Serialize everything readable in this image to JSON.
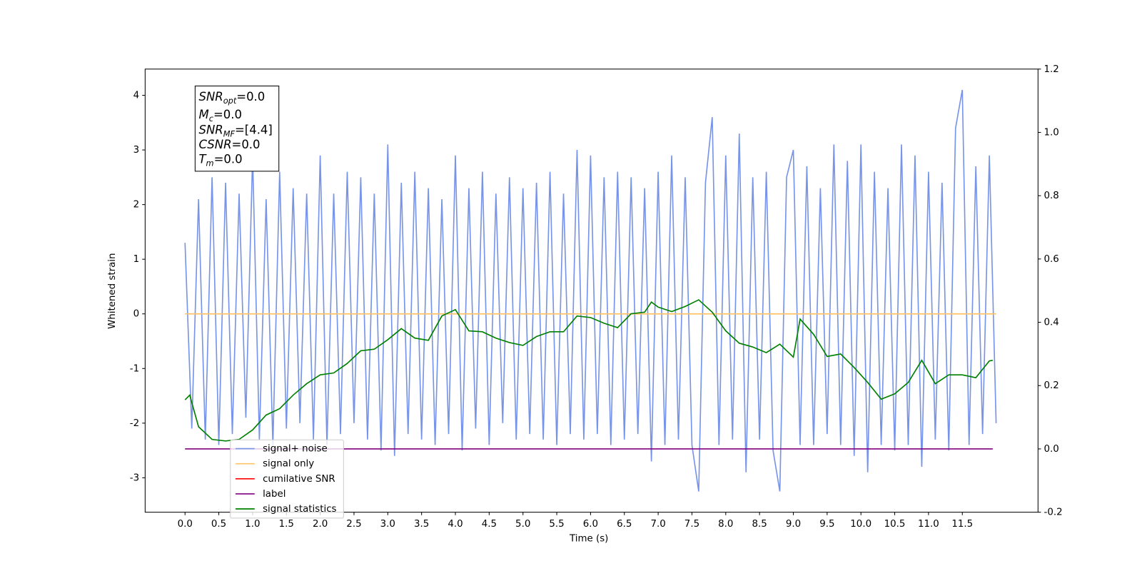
{
  "chart_data": {
    "type": "line",
    "xlabel": "Time (s)",
    "ylabel": "Whitened strain",
    "xlim": [
      -0.59,
      12.62
    ],
    "ylim": [
      -3.63,
      4.48
    ],
    "y2lim": [
      -0.2,
      1.2
    ],
    "xticks": [
      {
        "value": 0,
        "label": "0.0"
      },
      0.5,
      {
        "value": 1,
        "label": "1.0"
      },
      1.5,
      {
        "value": 2,
        "label": "2.0"
      },
      2.5,
      {
        "value": 3,
        "label": "3.0"
      },
      3.5,
      {
        "value": 4,
        "label": "4.0"
      },
      4.5,
      {
        "value": 5,
        "label": "5.0"
      },
      5.5,
      {
        "value": 6,
        "label": "6.0"
      },
      6.5,
      {
        "value": 7,
        "label": "7.0"
      },
      7.5,
      {
        "value": 8,
        "label": "8.0"
      },
      8.5,
      {
        "value": 9,
        "label": "9.0"
      },
      9.5,
      {
        "value": 10,
        "label": "10.0"
      },
      10.5,
      {
        "value": 11,
        "label": "11.0"
      },
      11.5
    ],
    "yticks": [
      -3,
      -2,
      -1,
      0,
      1,
      2,
      3,
      4
    ],
    "y2ticks": [
      -0.2,
      {
        "value": 0,
        "label": "0.0"
      },
      0.2,
      0.4,
      0.6,
      0.8,
      {
        "value": 1,
        "label": "1.0"
      },
      1.2
    ],
    "annotations": [
      {
        "main": "SNR",
        "sub": "opt",
        "rest": "=0.0"
      },
      {
        "main": "M",
        "sub": "c",
        "rest": "=0.0"
      },
      {
        "main": "SNR",
        "sub": "MF",
        "rest": "=[4.4]"
      },
      {
        "main": "CSNR",
        "rest": "=0.0"
      },
      {
        "main": "T",
        "sub": "m",
        "rest": "=0.0"
      }
    ],
    "legend": "lower left",
    "series": [
      {
        "name": "signal+ noise",
        "color": "#7894e8",
        "x": [
          0.0,
          0.1,
          0.2,
          0.3,
          0.4,
          0.5,
          0.6,
          0.7,
          0.8,
          0.9,
          1.0,
          1.1,
          1.2,
          1.3,
          1.4,
          1.5,
          1.6,
          1.7,
          1.8,
          1.9,
          2.0,
          2.1,
          2.2,
          2.3,
          2.4,
          2.5,
          2.6,
          2.7,
          2.8,
          2.9,
          3.0,
          3.1,
          3.2,
          3.3,
          3.4,
          3.5,
          3.6,
          3.7,
          3.8,
          3.9,
          4.0,
          4.1,
          4.2,
          4.3,
          4.4,
          4.5,
          4.6,
          4.7,
          4.8,
          4.9,
          5.0,
          5.1,
          5.2,
          5.3,
          5.4,
          5.5,
          5.6,
          5.7,
          5.8,
          5.9,
          6.0,
          6.1,
          6.2,
          6.3,
          6.4,
          6.5,
          6.6,
          6.7,
          6.8,
          6.9,
          7.0,
          7.1,
          7.2,
          7.3,
          7.4,
          7.5,
          7.6,
          7.7,
          7.8,
          7.9,
          8.0,
          8.1,
          8.2,
          8.3,
          8.4,
          8.5,
          8.6,
          8.7,
          8.8,
          8.9,
          9.0,
          9.1,
          9.2,
          9.3,
          9.4,
          9.5,
          9.6,
          9.7,
          9.8,
          9.9,
          10.0,
          10.1,
          10.2,
          10.3,
          10.4,
          10.5,
          10.6,
          10.7,
          10.8,
          10.9,
          11.0,
          11.1,
          11.2,
          11.3,
          11.4,
          11.5,
          11.6,
          11.7,
          11.8,
          11.9,
          12.0
        ],
        "values": [
          1.3,
          -2.1,
          2.1,
          -2.3,
          2.5,
          -2.4,
          2.4,
          -2.2,
          2.2,
          -1.9,
          2.9,
          -2.3,
          2.1,
          -2.4,
          2.6,
          -2.1,
          2.3,
          -2.0,
          2.2,
          -2.3,
          2.9,
          -2.4,
          2.2,
          -2.2,
          2.6,
          -2.0,
          2.5,
          -2.3,
          2.2,
          -2.5,
          3.1,
          -2.6,
          2.4,
          -2.2,
          2.6,
          -2.3,
          2.3,
          -2.4,
          2.1,
          -2.2,
          2.9,
          -2.5,
          2.3,
          -2.1,
          2.6,
          -2.4,
          2.2,
          -2.0,
          2.5,
          -2.3,
          2.3,
          -2.2,
          2.4,
          -2.3,
          2.6,
          -2.4,
          2.2,
          -2.2,
          3.0,
          -2.3,
          2.9,
          -2.2,
          2.5,
          -2.4,
          2.6,
          -2.3,
          2.5,
          -2.2,
          2.3,
          -2.7,
          2.6,
          -2.4,
          2.9,
          -2.3,
          2.5,
          -2.4,
          -3.25,
          2.4,
          3.6,
          -2.4,
          2.9,
          -2.3,
          3.3,
          -2.9,
          2.5,
          -2.3,
          2.6,
          -2.5,
          -3.25,
          2.5,
          3.0,
          -2.4,
          2.7,
          -2.4,
          2.3,
          -2.2,
          3.1,
          -2.4,
          2.8,
          -2.6,
          3.1,
          -2.9,
          2.6,
          -2.4,
          2.3,
          -2.5,
          3.1,
          -2.4,
          2.9,
          -2.8,
          2.6,
          -2.3,
          2.4,
          -2.5,
          3.4,
          4.1,
          -2.4,
          2.7,
          -2.2,
          2.9,
          -2.0
        ]
      },
      {
        "name": "signal only",
        "color": "#ffc266",
        "x": [
          0,
          12
        ],
        "values": [
          0,
          0
        ]
      },
      {
        "name": "cumilative SNR",
        "color": "#ff0000",
        "x": [],
        "values": []
      },
      {
        "name": "label",
        "color": "#800080",
        "axis": "y2",
        "x": [
          0,
          11.95
        ],
        "values": [
          0,
          0
        ]
      },
      {
        "name": "signal statistics",
        "color": "#008000",
        "axis": "y2",
        "x": [
          0,
          0.07,
          0.2,
          0.4,
          0.6,
          0.8,
          1.0,
          1.2,
          1.4,
          1.6,
          1.8,
          2.0,
          2.2,
          2.4,
          2.6,
          2.8,
          3.0,
          3.2,
          3.4,
          3.6,
          3.8,
          4.0,
          4.2,
          4.4,
          4.6,
          4.8,
          5.0,
          5.2,
          5.4,
          5.6,
          5.8,
          6.0,
          6.2,
          6.4,
          6.6,
          6.8,
          6.9,
          7.0,
          7.2,
          7.4,
          7.6,
          7.8,
          8.0,
          8.2,
          8.4,
          8.6,
          8.8,
          9.0,
          9.1,
          9.3,
          9.5,
          9.7,
          9.9,
          10.1,
          10.3,
          10.5,
          10.7,
          10.9,
          11.1,
          11.3,
          11.5,
          11.7,
          11.9,
          11.95
        ],
        "values": [
          0.155,
          0.17,
          0.07,
          0.03,
          0.025,
          0.03,
          0.06,
          0.107,
          0.127,
          0.17,
          0.206,
          0.234,
          0.24,
          0.27,
          0.31,
          0.315,
          0.345,
          0.38,
          0.35,
          0.343,
          0.42,
          0.44,
          0.373,
          0.37,
          0.35,
          0.336,
          0.327,
          0.355,
          0.37,
          0.37,
          0.42,
          0.415,
          0.397,
          0.383,
          0.427,
          0.432,
          0.464,
          0.448,
          0.434,
          0.45,
          0.471,
          0.432,
          0.373,
          0.334,
          0.322,
          0.304,
          0.331,
          0.29,
          0.41,
          0.362,
          0.292,
          0.3,
          0.257,
          0.21,
          0.157,
          0.174,
          0.21,
          0.28,
          0.206,
          0.234,
          0.234,
          0.225,
          0.278,
          0.28
        ]
      }
    ]
  }
}
